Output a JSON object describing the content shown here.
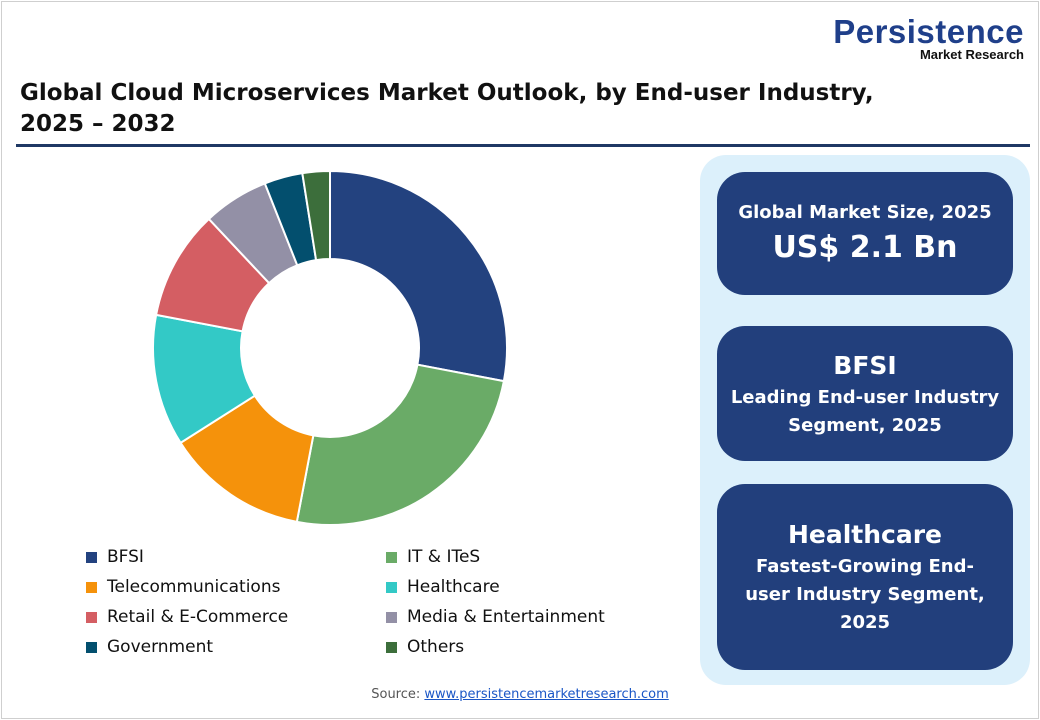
{
  "logo": {
    "line1": "Persistence",
    "line2": "Market Research"
  },
  "header": {
    "title_line1": "Global Cloud Microservices Market Outlook, by End-user Industry,",
    "title_line2": "2025 – 2032"
  },
  "chart_data": {
    "type": "pie",
    "donut": true,
    "title": "Global Cloud Microservices Market Outlook, by End-user Industry, 2025 – 2032",
    "unit": "percent share (estimated)",
    "legend_placement": "bottom",
    "categories": [
      "BFSI",
      "IT & ITeS",
      "Telecommunications",
      "Healthcare",
      "Retail & E-Commerce",
      "Media & Entertainment",
      "Government",
      "Others"
    ],
    "values": [
      28,
      25,
      13,
      12,
      10,
      6,
      3.5,
      2.5
    ],
    "colors": [
      "#23427f",
      "#6aab67",
      "#f5920b",
      "#33c9c6",
      "#d45e63",
      "#9390a6",
      "#034f6e",
      "#3c6e3b"
    ]
  },
  "panel": {
    "card1": {
      "label": "Global Market Size, 2025",
      "value": "US$ 2.1 Bn"
    },
    "card2": {
      "heading": "BFSI",
      "line1": "Leading End-user Industry",
      "line2": "Segment, 2025"
    },
    "card3": {
      "heading": "Healthcare",
      "line1": "Fastest-Growing End-",
      "line2": "user Industry Segment,",
      "line3": "2025"
    }
  },
  "source": {
    "label": "Source:",
    "link": "www.persistencemarketresearch.com"
  }
}
